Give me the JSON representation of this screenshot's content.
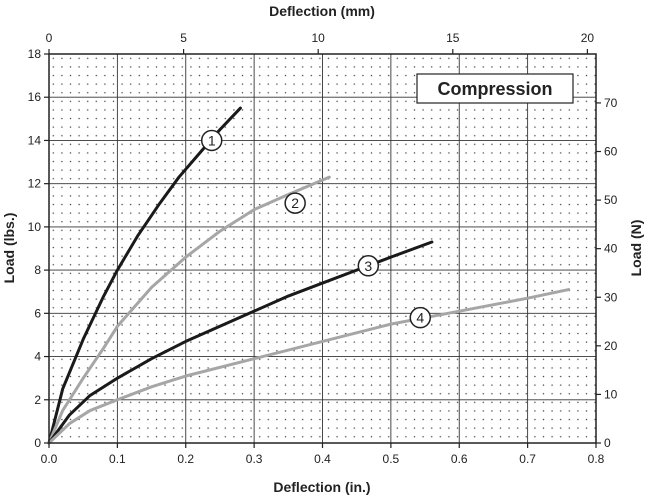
{
  "chart_data": {
    "type": "line",
    "title": "",
    "annotation": "Compression",
    "x_bottom": {
      "label": "Deflection (in.)",
      "range": [
        0,
        0.8
      ],
      "ticks": [
        0.0,
        0.1,
        0.2,
        0.3,
        0.4,
        0.5,
        0.6,
        0.7,
        0.8
      ]
    },
    "x_top": {
      "label": "Deflection (mm)",
      "range": [
        0,
        20.32
      ],
      "ticks": [
        0,
        5,
        10,
        15,
        20
      ]
    },
    "y_left": {
      "label": "Load (lbs.)",
      "range": [
        0,
        18
      ],
      "ticks": [
        0,
        2,
        4,
        6,
        8,
        10,
        12,
        14,
        16,
        18
      ]
    },
    "y_right": {
      "label": "Load (N)",
      "range": [
        0,
        80.07
      ],
      "ticks": [
        0,
        10,
        20,
        30,
        40,
        50,
        60,
        70
      ]
    },
    "grid": true,
    "series": [
      {
        "name": "1",
        "color": "#1a1a1a",
        "x": [
          0,
          0.02,
          0.05,
          0.08,
          0.1,
          0.13,
          0.16,
          0.19,
          0.22,
          0.25,
          0.28
        ],
        "y": [
          0,
          2.5,
          4.8,
          6.8,
          8.0,
          9.6,
          11.0,
          12.3,
          13.4,
          14.5,
          15.5
        ]
      },
      {
        "name": "2",
        "color": "#a6a6a6",
        "x": [
          0,
          0.02,
          0.05,
          0.08,
          0.1,
          0.15,
          0.2,
          0.25,
          0.3,
          0.35,
          0.41
        ],
        "y": [
          0,
          1.5,
          3.0,
          4.4,
          5.4,
          7.2,
          8.6,
          9.8,
          10.8,
          11.5,
          12.3
        ]
      },
      {
        "name": "3",
        "color": "#1a1a1a",
        "x": [
          0,
          0.03,
          0.06,
          0.1,
          0.15,
          0.2,
          0.25,
          0.3,
          0.35,
          0.4,
          0.45,
          0.5,
          0.56
        ],
        "y": [
          0,
          1.3,
          2.2,
          3.0,
          3.9,
          4.7,
          5.4,
          6.1,
          6.8,
          7.4,
          8.0,
          8.6,
          9.3
        ]
      },
      {
        "name": "4",
        "color": "#a6a6a6",
        "x": [
          0,
          0.03,
          0.06,
          0.1,
          0.15,
          0.2,
          0.3,
          0.4,
          0.5,
          0.6,
          0.7,
          0.76
        ],
        "y": [
          0,
          0.9,
          1.5,
          2.0,
          2.6,
          3.1,
          3.9,
          4.7,
          5.5,
          6.1,
          6.7,
          7.1
        ]
      }
    ],
    "markers": [
      {
        "label": "1",
        "x": 0.238,
        "y": 14.0
      },
      {
        "label": "2",
        "x": 0.36,
        "y": 11.1
      },
      {
        "label": "3",
        "x": 0.467,
        "y": 8.2
      },
      {
        "label": "4",
        "x": 0.543,
        "y": 5.8
      }
    ]
  }
}
